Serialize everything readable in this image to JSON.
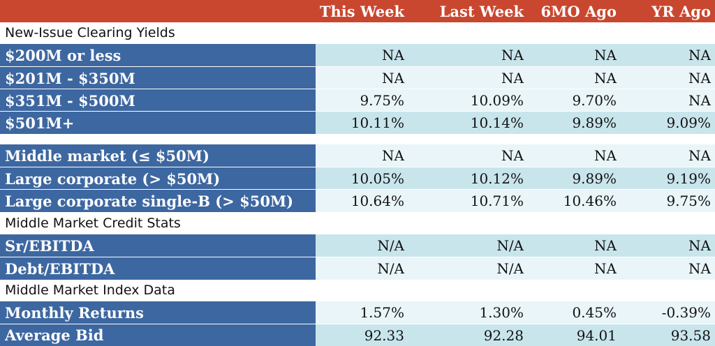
{
  "columns": [
    "",
    "This Week",
    "Last Week",
    "6MO Ago",
    "YR Ago"
  ],
  "sections": {
    "new_issue": "New-Issue Clearing Yields",
    "credit_stats": "Middle Market Credit Stats",
    "index_data": "Middle Market Index Data"
  },
  "rows": [
    {
      "label": "$200M or less",
      "values": [
        "NA",
        "NA",
        "NA",
        "NA"
      ]
    },
    {
      "label": "$201M - $350M",
      "values": [
        "NA",
        "NA",
        "NA",
        "NA"
      ]
    },
    {
      "label": "$351M - $500M",
      "values": [
        "9.75%",
        "10.09%",
        "9.70%",
        "NA"
      ]
    },
    {
      "label": "$501M+",
      "values": [
        "10.11%",
        "10.14%",
        "9.89%",
        "9.09%"
      ]
    },
    {
      "label": "Middle market (≤ $50M)",
      "values": [
        "NA",
        "NA",
        "NA",
        "NA"
      ]
    },
    {
      "label": "Large corporate (> $50M)",
      "values": [
        "10.05%",
        "10.12%",
        "9.89%",
        "9.19%"
      ]
    },
    {
      "label": "Large corporate single-B (> $50M)",
      "values": [
        "10.64%",
        "10.71%",
        "10.46%",
        "9.75%"
      ]
    },
    {
      "label": "Sr/EBITDA",
      "values": [
        "N/A",
        "N/A",
        "NA",
        "NA"
      ]
    },
    {
      "label": "Debt/EBITDA",
      "values": [
        "N/A",
        "N/A",
        "NA",
        "NA"
      ]
    },
    {
      "label": "Monthly Returns",
      "values": [
        "1.57%",
        "1.30%",
        "0.45%",
        "-0.39%"
      ]
    },
    {
      "label": "Average Bid",
      "values": [
        "92.33",
        "92.28",
        "94.01",
        "93.58"
      ]
    }
  ]
}
